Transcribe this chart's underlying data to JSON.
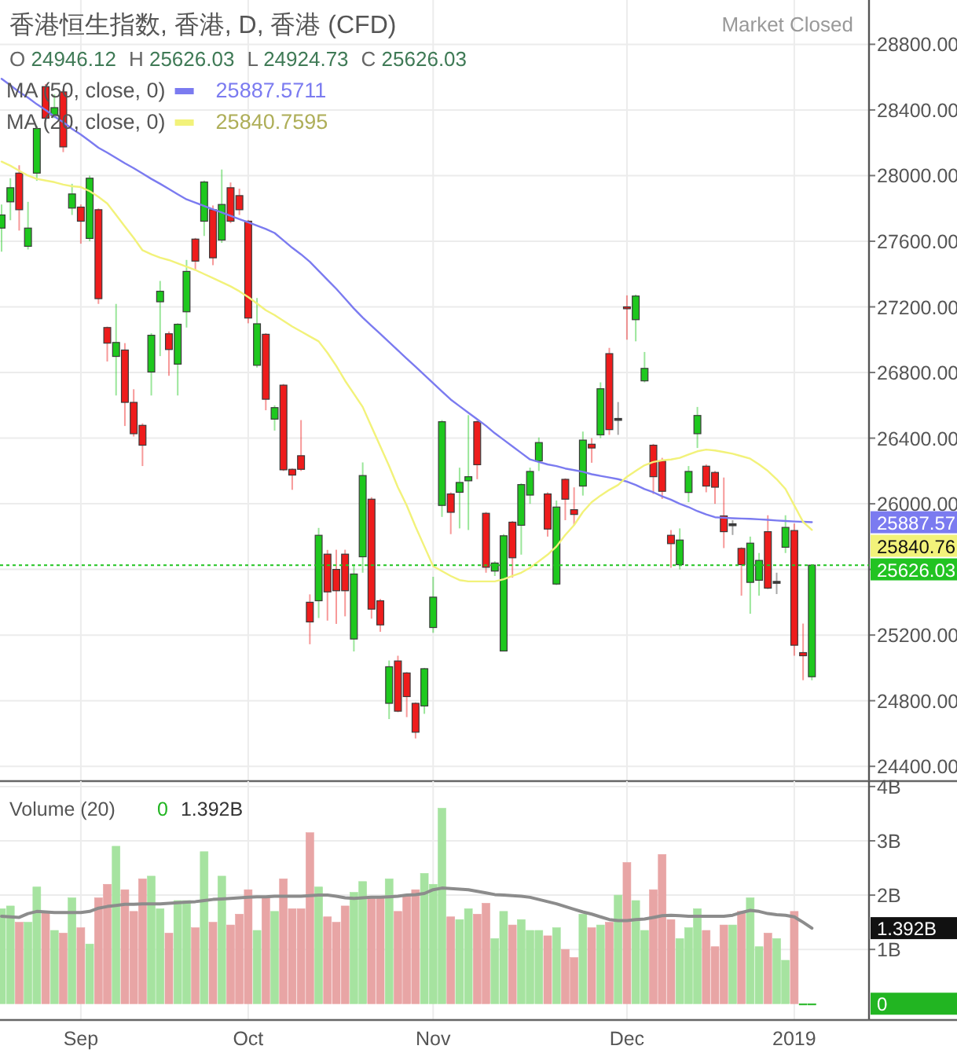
{
  "chart_data": [
    {
      "type": "candlestick",
      "title": "香港恒生指数, 香港, D, 香港 (CFD)",
      "legend": "top left",
      "grid": true,
      "tick_labels": "y",
      "categories": [
        null,
        null,
        null,
        null,
        null,
        null,
        null,
        null,
        null,
        null,
        null,
        null,
        null,
        null,
        null,
        null,
        null,
        null,
        null,
        null,
        null,
        null,
        null,
        null,
        null,
        null,
        null,
        null,
        null,
        null,
        null,
        null,
        null,
        null,
        null,
        null,
        null,
        null,
        null,
        null,
        null,
        null,
        null,
        null,
        null,
        null,
        null,
        null,
        null,
        null,
        null,
        null,
        null,
        null,
        null,
        null,
        null,
        null,
        null,
        null,
        null,
        null,
        null,
        null,
        null,
        null,
        null,
        null,
        null,
        null,
        null,
        null,
        null,
        null,
        null,
        null,
        null,
        null,
        null,
        null,
        null,
        null,
        null,
        null,
        null,
        null,
        null,
        null,
        null,
        null,
        null,
        null,
        null
      ],
      "ylim": [
        24310,
        29070
      ],
      "yticks": [
        {
          "value": 24400,
          "label": "24400.00"
        },
        {
          "value": 24800,
          "label": "24800.00"
        },
        {
          "value": 25200,
          "label": "25200.00"
        },
        {
          "value": 25600,
          "label": null
        },
        {
          "value": 26000,
          "label": "26000.00"
        },
        {
          "value": 26400,
          "label": "26400.00"
        },
        {
          "value": 26800,
          "label": "26800.00"
        },
        {
          "value": 27200,
          "label": "27200.00"
        },
        {
          "value": 27600,
          "label": "27600.00"
        },
        {
          "value": 28000,
          "label": "28000.00"
        },
        {
          "value": 28400,
          "label": "28400.00"
        },
        {
          "value": 28800,
          "label": "28800.00"
        }
      ],
      "series": [
        {
          "type": "candlestick",
          "ohlc": [
            [
              27680,
              27824,
              27537,
              27760
            ],
            [
              27840,
              27984,
              27728,
              27926
            ],
            [
              28015,
              28063,
              27665,
              27792
            ],
            [
              27569,
              27840,
              27550,
              27680
            ],
            [
              28015,
              28303,
              27968,
              28287
            ],
            [
              28542,
              28558,
              28340,
              28350
            ],
            [
              28366,
              28494,
              28350,
              28414
            ],
            [
              28510,
              28526,
              28143,
              28175
            ],
            [
              27802,
              27950,
              27760,
              27888
            ],
            [
              27808,
              27824,
              27585,
              27722
            ],
            [
              27617,
              28000,
              27600,
              27984
            ],
            [
              27792,
              27800,
              27218,
              27250
            ],
            [
              27074,
              27080,
              26867,
              26979
            ],
            [
              26898,
              27218,
              26660,
              26983
            ],
            [
              26937,
              26979,
              26474,
              26618
            ],
            [
              26618,
              26698,
              26410,
              26427
            ],
            [
              26478,
              26490,
              26230,
              26357
            ],
            [
              26803,
              27040,
              26660,
              27027
            ],
            [
              27231,
              27358,
              26900,
              27295
            ],
            [
              27036,
              27050,
              26780,
              26940
            ],
            [
              26851,
              27100,
              26660,
              27094
            ],
            [
              27170,
              27486,
              27074,
              27416
            ],
            [
              27613,
              27620,
              27422,
              27479
            ],
            [
              27722,
              27970,
              27632,
              27961
            ],
            [
              27792,
              27818,
              27454,
              27499
            ],
            [
              27607,
              28037,
              27590,
              27824
            ],
            [
              27926,
              27958,
              27710,
              27722
            ],
            [
              27878,
              27920,
              27760,
              27792
            ],
            [
              27722,
              27730,
              27100,
              27132
            ],
            [
              26844,
              27254,
              26830,
              27097
            ],
            [
              27033,
              27040,
              26570,
              26637
            ],
            [
              26516,
              26600,
              26446,
              26586
            ],
            [
              26723,
              26730,
              26200,
              26207
            ],
            [
              26210,
              26215,
              26085,
              26175
            ],
            [
              26293,
              26510,
              26200,
              26210
            ],
            [
              25400,
              25448,
              25144,
              25280
            ],
            [
              25409,
              25853,
              25304,
              25808
            ],
            [
              25693,
              25719,
              25288,
              25463
            ],
            [
              25600,
              25720,
              25268,
              25470
            ],
            [
              25693,
              25720,
              25314,
              25470
            ],
            [
              25176,
              25630,
              25100,
              25572
            ],
            [
              25677,
              26252,
              25580,
              26172
            ],
            [
              26028,
              26040,
              25300,
              25358
            ],
            [
              25409,
              25420,
              25220,
              25262
            ],
            [
              24784,
              25045,
              24688,
              25007
            ],
            [
              25042,
              25074,
              24730,
              24736
            ],
            [
              24969,
              24975,
              24700,
              24825
            ],
            [
              24784,
              24790,
              24570,
              24608
            ],
            [
              24768,
              25000,
              24720,
              24995
            ],
            [
              25246,
              25555,
              25214,
              25431
            ],
            [
              25990,
              26510,
              25920,
              26500
            ],
            [
              26060,
              26070,
              25815,
              25948
            ],
            [
              26070,
              26220,
              25850,
              26130
            ],
            [
              26140,
              26540,
              25840,
              26165
            ],
            [
              26500,
              26510,
              26150,
              26238
            ],
            [
              25942,
              25950,
              25580,
              25613
            ],
            [
              25590,
              25650,
              25560,
              25639
            ],
            [
              25103,
              25815,
              25100,
              25805
            ],
            [
              25888,
              25895,
              25550,
              25671
            ],
            [
              25869,
              26125,
              25690,
              26117
            ],
            [
              26053,
              26220,
              26000,
              26197
            ],
            [
              26261,
              26404,
              26200,
              26373
            ],
            [
              26060,
              26070,
              25800,
              25846
            ],
            [
              25511,
              26020,
              25505,
              25980
            ],
            [
              26149,
              26155,
              25900,
              26028
            ],
            [
              25964,
              26100,
              25870,
              25935
            ],
            [
              26108,
              26440,
              26050,
              26388
            ],
            [
              26363,
              26400,
              26250,
              26340
            ],
            [
              26420,
              26740,
              26400,
              26701
            ],
            [
              26915,
              26950,
              26420,
              26452
            ],
            [
              26520,
              26620,
              26420,
              26520
            ],
            [
              27200,
              27270,
              27000,
              27190
            ],
            [
              27122,
              27275,
              26990,
              27266
            ],
            [
              26749,
              26925,
              26740,
              26825
            ],
            [
              26357,
              26365,
              26060,
              26165
            ],
            [
              26261,
              26280,
              26030,
              26076
            ],
            [
              25808,
              25840,
              25610,
              25757
            ],
            [
              25629,
              25850,
              25600,
              25779
            ],
            [
              26069,
              26230,
              26010,
              26197
            ],
            [
              26427,
              26590,
              26340,
              26538
            ],
            [
              26229,
              26240,
              26070,
              26108
            ],
            [
              26191,
              26200,
              26000,
              26101
            ],
            [
              25926,
              26160,
              25730,
              25830
            ],
            [
              25878,
              25900,
              25810,
              25878
            ],
            [
              25728,
              25735,
              25440,
              25629
            ],
            [
              25521,
              25800,
              25330,
              25760
            ],
            [
              25534,
              25700,
              25440,
              25655
            ],
            [
              25830,
              25930,
              25480,
              25486
            ],
            [
              25527,
              25580,
              25450,
              25527
            ],
            [
              25735,
              25930,
              25700,
              25856
            ],
            [
              25837,
              25880,
              25074,
              25138
            ],
            [
              25093,
              25270,
              24925,
              25074
            ],
            [
              24946.12,
              25626.03,
              24924.73,
              25626.03
            ]
          ],
          "colors": [
            "#1ec81e",
            "#1ec81e",
            "#ee1c1c",
            "#1ec81e",
            "#1ec81e",
            "#ee1c1c",
            "#1ec81e",
            "#ee1c1c",
            "#1ec81e",
            "#ee1c1c",
            "#1ec81e",
            "#ee1c1c",
            "#ee1c1c",
            "#1ec81e",
            "#ee1c1c",
            "#ee1c1c",
            "#ee1c1c",
            "#1ec81e",
            "#1ec81e",
            "#ee1c1c",
            "#1ec81e",
            "#1ec81e",
            "#ee1c1c",
            "#1ec81e",
            "#ee1c1c",
            "#1ec81e",
            "#ee1c1c",
            "#ee1c1c",
            "#ee1c1c",
            "#1ec81e",
            "#ee1c1c",
            "#1ec81e",
            "#ee1c1c",
            "#ee1c1c",
            "#ee1c1c",
            "#ee1c1c",
            "#1ec81e",
            "#ee1c1c",
            "#ee1c1c",
            "#ee1c1c",
            "#1ec81e",
            "#1ec81e",
            "#ee1c1c",
            "#ee1c1c",
            "#1ec81e",
            "#ee1c1c",
            "#ee1c1c",
            "#ee1c1c",
            "#1ec81e",
            "#1ec81e",
            "#1ec81e",
            "#ee1c1c",
            "#1ec81e",
            "#1ec81e",
            "#ee1c1c",
            "#ee1c1c",
            "#1ec81e",
            "#1ec81e",
            "#ee1c1c",
            "#1ec81e",
            "#1ec81e",
            "#1ec81e",
            "#ee1c1c",
            "#1ec81e",
            "#ee1c1c",
            "#ee1c1c",
            "#1ec81e",
            "#ee1c1c",
            "#1ec81e",
            "#ee1c1c",
            "#3a3a3a",
            "#ee1c1c",
            "#1ec81e",
            "#1ec81e",
            "#ee1c1c",
            "#ee1c1c",
            "#ee1c1c",
            "#1ec81e",
            "#1ec81e",
            "#1ec81e",
            "#ee1c1c",
            "#ee1c1c",
            "#ee1c1c",
            "#3a3a3a",
            "#ee1c1c",
            "#1ec81e",
            "#1ec81e",
            "#ee1c1c",
            "#3a3a3a",
            "#1ec81e",
            "#ee1c1c",
            "#ee1c1c",
            "#1ec81e"
          ]
        },
        {
          "type": "line",
          "name": "MA (50, close, 0)",
          "color": "#7b7bf0",
          "values": [
            28590,
            28550,
            28510,
            28475,
            28435,
            28400,
            28360,
            28325,
            28285,
            28250,
            28210,
            28170,
            28140,
            28107,
            28075,
            28045,
            28013,
            27980,
            27950,
            27918,
            27886,
            27855,
            27835,
            27815,
            27795,
            27775,
            27755,
            27735,
            27715,
            27695,
            27675,
            27650,
            27605,
            27560,
            27520,
            27475,
            27420,
            27365,
            27310,
            27250,
            27190,
            27135,
            27085,
            27035,
            26985,
            26935,
            26885,
            26835,
            26785,
            26735,
            26685,
            26635,
            26595,
            26555,
            26515,
            26475,
            26430,
            26390,
            26350,
            26310,
            26270,
            26255,
            26240,
            26230,
            26215,
            26205,
            26195,
            26180,
            26170,
            26160,
            26150,
            26135,
            26115,
            26090,
            26070,
            26045,
            26025,
            26000,
            25980,
            25955,
            25935,
            25918,
            25915,
            25912,
            25910,
            25908,
            25905,
            25902,
            25898,
            25895,
            25892,
            25890,
            25887.57
          ]
        },
        {
          "type": "line",
          "name": "MA (20, close, 0)",
          "color": "#f2f27a",
          "values": [
            28085,
            28060,
            28030,
            28000,
            27980,
            27970,
            27960,
            27945,
            27935,
            27930,
            27905,
            27870,
            27830,
            27760,
            27690,
            27620,
            27545,
            27520,
            27500,
            27485,
            27465,
            27445,
            27425,
            27400,
            27375,
            27350,
            27325,
            27295,
            27260,
            27220,
            27180,
            27150,
            27115,
            27080,
            27050,
            27020,
            26990,
            26920,
            26840,
            26750,
            26670,
            26590,
            26470,
            26350,
            26230,
            26100,
            25990,
            25860,
            25740,
            25620,
            25590,
            25560,
            25535,
            25527,
            25527,
            25527,
            25527,
            25540,
            25560,
            25580,
            25610,
            25650,
            25690,
            25740,
            25810,
            25870,
            25950,
            26010,
            26050,
            26085,
            26115,
            26165,
            26200,
            26235,
            26255,
            26265,
            26270,
            26280,
            26300,
            26320,
            26330,
            26325,
            26315,
            26305,
            26290,
            26275,
            26240,
            26200,
            26150,
            26090,
            25990,
            25890,
            25840.76
          ]
        }
      ],
      "ref_lines": [
        {
          "axis": "y",
          "value": 25626.03,
          "label": "25626.03",
          "color": "#22c322",
          "line_style": "dotted"
        }
      ],
      "annotations": [
        "Market Closed",
        "O 24946.12",
        "H 25626.03",
        "L 24924.73",
        "C 25626.03",
        "25887.5711",
        "25840.7595",
        "25887.57",
        "25840.76"
      ]
    },
    {
      "type": "bar",
      "title": "Volume (20)",
      "grid": true,
      "categories": [
        null,
        null,
        null,
        null,
        null,
        null,
        null,
        null,
        null,
        "Sep",
        null,
        null,
        null,
        null,
        null,
        null,
        null,
        null,
        null,
        null,
        null,
        null,
        null,
        null,
        null,
        null,
        null,
        null,
        "Oct",
        null,
        null,
        null,
        null,
        null,
        null,
        null,
        null,
        null,
        null,
        null,
        null,
        null,
        null,
        null,
        null,
        null,
        null,
        null,
        null,
        "Nov",
        null,
        null,
        null,
        null,
        null,
        null,
        null,
        null,
        null,
        null,
        null,
        null,
        null,
        null,
        null,
        null,
        null,
        null,
        null,
        null,
        null,
        "Dec",
        null,
        null,
        null,
        null,
        null,
        null,
        null,
        null,
        null,
        null,
        null,
        null,
        null,
        null,
        null,
        null,
        null,
        null,
        "2019",
        null,
        null
      ],
      "ylim": [
        -0.3,
        4.1
      ],
      "yticks": [
        {
          "value": 1,
          "label": "1B"
        },
        {
          "value": 2,
          "label": "2B"
        },
        {
          "value": 3,
          "label": "3B"
        },
        {
          "value": 4,
          "label": "4B"
        }
      ],
      "series": [
        {
          "type": "bar",
          "values": [
            1.75,
            1.8,
            1.5,
            1.5,
            2.15,
            1.7,
            1.35,
            1.3,
            1.95,
            1.4,
            1.1,
            1.95,
            2.2,
            2.9,
            2.1,
            1.7,
            2.3,
            2.35,
            1.75,
            1.3,
            1.9,
            1.9,
            1.4,
            2.8,
            1.5,
            2.35,
            1.45,
            1.65,
            2.1,
            1.35,
            1.95,
            1.7,
            2.3,
            1.75,
            1.75,
            3.15,
            2.15,
            1.6,
            1.5,
            1.8,
            2.05,
            2.25,
            1.95,
            1.95,
            2.3,
            1.7,
            2.0,
            2.1,
            2.4,
            2.2,
            3.6,
            1.6,
            1.55,
            1.75,
            1.65,
            1.85,
            1.2,
            1.7,
            1.45,
            1.55,
            1.35,
            1.35,
            1.25,
            1.4,
            1.0,
            0.85,
            1.65,
            1.4,
            1.45,
            1.5,
            2.0,
            2.6,
            1.9,
            1.35,
            2.1,
            2.75,
            1.55,
            1.2,
            1.4,
            1.75,
            1.35,
            1.05,
            1.45,
            1.45,
            1.7,
            1.95,
            1.05,
            1.3,
            1.2,
            0.8,
            1.7,
            0,
            0
          ],
          "colors": [
            "#a6e3a0",
            "#a6e3a0",
            "#e8a5a5",
            "#a6e3a0",
            "#a6e3a0",
            "#e8a5a5",
            "#a6e3a0",
            "#e8a5a5",
            "#a6e3a0",
            "#e8a5a5",
            "#a6e3a0",
            "#e8a5a5",
            "#e8a5a5",
            "#a6e3a0",
            "#e8a5a5",
            "#e8a5a5",
            "#e8a5a5",
            "#a6e3a0",
            "#a6e3a0",
            "#e8a5a5",
            "#a6e3a0",
            "#a6e3a0",
            "#e8a5a5",
            "#a6e3a0",
            "#e8a5a5",
            "#a6e3a0",
            "#e8a5a5",
            "#e8a5a5",
            "#e8a5a5",
            "#a6e3a0",
            "#e8a5a5",
            "#a6e3a0",
            "#e8a5a5",
            "#e8a5a5",
            "#e8a5a5",
            "#e8a5a5",
            "#a6e3a0",
            "#e8a5a5",
            "#e8a5a5",
            "#e8a5a5",
            "#a6e3a0",
            "#a6e3a0",
            "#e8a5a5",
            "#e8a5a5",
            "#a6e3a0",
            "#e8a5a5",
            "#e8a5a5",
            "#e8a5a5",
            "#a6e3a0",
            "#a6e3a0",
            "#a6e3a0",
            "#e8a5a5",
            "#a6e3a0",
            "#a6e3a0",
            "#e8a5a5",
            "#e8a5a5",
            "#a6e3a0",
            "#a6e3a0",
            "#e8a5a5",
            "#a6e3a0",
            "#a6e3a0",
            "#a6e3a0",
            "#e8a5a5",
            "#a6e3a0",
            "#e8a5a5",
            "#e8a5a5",
            "#a6e3a0",
            "#e8a5a5",
            "#a6e3a0",
            "#e8a5a5",
            "#a6e3a0",
            "#e8a5a5",
            "#a6e3a0",
            "#a6e3a0",
            "#e8a5a5",
            "#e8a5a5",
            "#e8a5a5",
            "#a6e3a0",
            "#a6e3a0",
            "#a6e3a0",
            "#e8a5a5",
            "#e8a5a5",
            "#e8a5a5",
            "#a6e3a0",
            "#e8a5a5",
            "#a6e3a0",
            "#a6e3a0",
            "#e8a5a5",
            "#a6e3a0",
            "#a6e3a0",
            "#e8a5a5",
            "#22b522",
            "#22b522"
          ]
        },
        {
          "type": "line",
          "color": "#8c8c8c",
          "values": [
            1.61,
            1.6,
            1.59,
            1.66,
            1.7,
            1.69,
            1.68,
            1.68,
            1.68,
            1.68,
            1.7,
            1.76,
            1.79,
            1.81,
            1.83,
            1.83,
            1.84,
            1.84,
            1.84,
            1.85,
            1.86,
            1.87,
            1.88,
            1.9,
            1.92,
            1.93,
            1.94,
            1.95,
            1.96,
            1.97,
            1.97,
            1.98,
            1.98,
            1.98,
            1.98,
            1.99,
            2.0,
            2.0,
            1.98,
            1.95,
            1.94,
            1.95,
            1.96,
            1.96,
            1.97,
            1.98,
            2.0,
            2.01,
            2.03,
            2.1,
            2.13,
            2.12,
            2.11,
            2.1,
            2.07,
            2.04,
            2.01,
            2.0,
            1.99,
            1.98,
            1.96,
            1.92,
            1.88,
            1.84,
            1.79,
            1.74,
            1.69,
            1.65,
            1.6,
            1.55,
            1.53,
            1.53,
            1.55,
            1.56,
            1.59,
            1.62,
            1.63,
            1.62,
            1.61,
            1.61,
            1.61,
            1.61,
            1.61,
            1.63,
            1.68,
            1.72,
            1.7,
            1.66,
            1.64,
            1.63,
            1.6,
            1.5,
            1.392
          ]
        }
      ],
      "annotations": [
        "0",
        "1.392B",
        "1.392B",
        "0"
      ]
    }
  ]
}
